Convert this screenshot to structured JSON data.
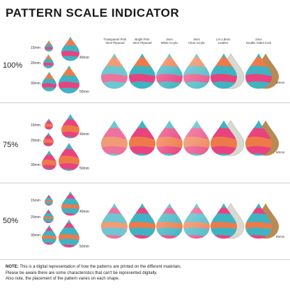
{
  "title": "PATTERN SCALE INDICATOR",
  "sizes": [
    "15mm",
    "20mm",
    "30mm",
    "40mm",
    "50mm"
  ],
  "material_size": "60mm",
  "materials": [
    {
      "name": "Transparent Print",
      "sub": "3mm Plywood"
    },
    {
      "name": "Bright Print",
      "sub": "3mm Plywood"
    },
    {
      "name": "3mm",
      "sub": "White Acrylic"
    },
    {
      "name": "3mm",
      "sub": "Clear Acrylic"
    },
    {
      "name": "1.6-1.8mm",
      "sub": "Leather"
    },
    {
      "name": "2mm",
      "sub": "Double Sided Cork"
    }
  ],
  "scales": [
    "100%",
    "75%",
    "50%"
  ],
  "note": {
    "label": "NOTE:",
    "line1": "This is a digital representation of how the patterns are printed on the different materials.",
    "line2": "Please be aware there are some characteristics that can't be represented digitally.",
    "line3": "Also note, the placement of the pattern varies on each shape."
  },
  "colors": {
    "teal": "#3fb3c2",
    "pink": "#e8437e",
    "orange": "#ee7a4a",
    "magenta": "#d6338a",
    "cork": "#b98a54",
    "leather": "#d9d9d4"
  }
}
